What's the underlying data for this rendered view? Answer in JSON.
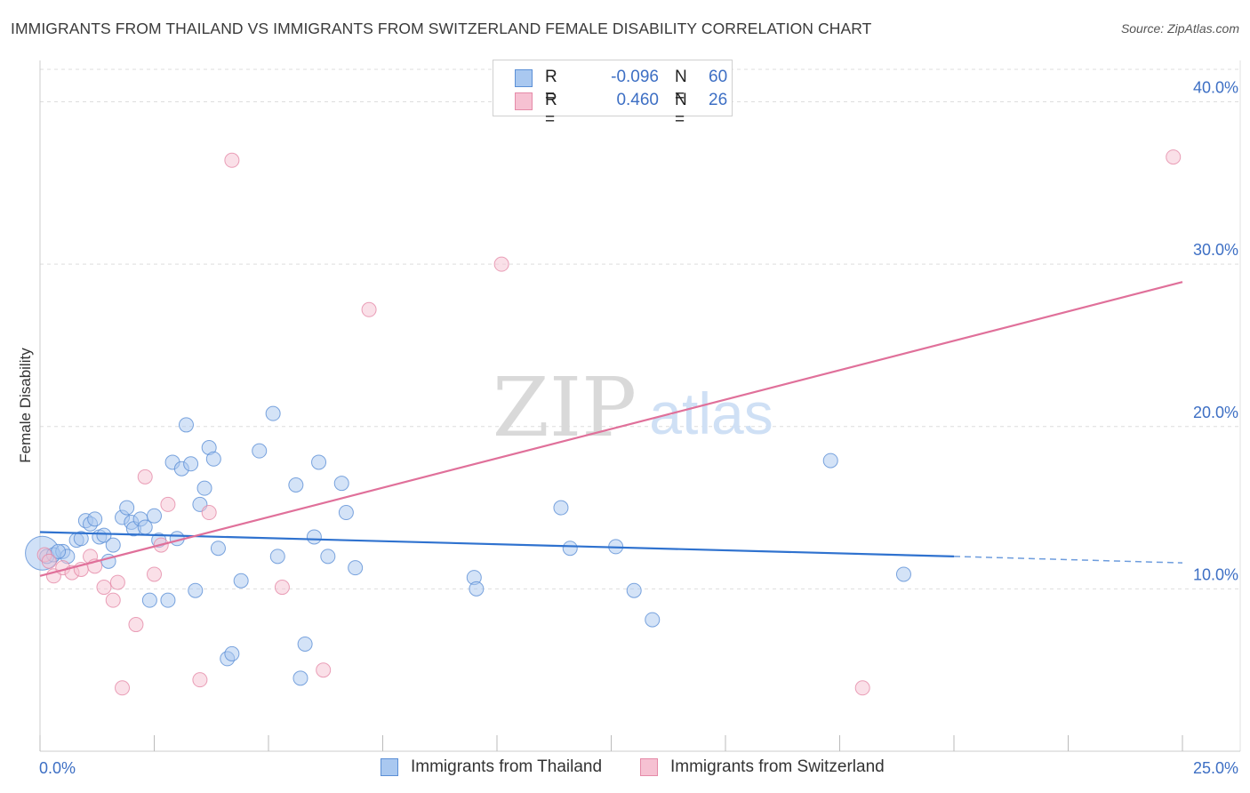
{
  "title": "IMMIGRANTS FROM THAILAND VS IMMIGRANTS FROM SWITZERLAND FEMALE DISABILITY CORRELATION CHART",
  "source": "Source: ZipAtlas.com",
  "watermark": {
    "part1": "ZIP",
    "part2": "atlas"
  },
  "colors": {
    "thailand_fill": "#a9c8f0",
    "thailand_stroke": "#5b8fd6",
    "thailand_line": "#2f72cf",
    "switzerland_fill": "#f6c1d2",
    "switzerland_stroke": "#e58aa8",
    "switzerland_line": "#e0709a",
    "axis_label": "#3d6fc4",
    "grid": "#dddddd"
  },
  "legend": {
    "thailand": {
      "r_label": "R =",
      "r_value": "-0.096",
      "n_label": "N =",
      "n_value": "60"
    },
    "switzerland": {
      "r_label": "R =",
      "r_value": "0.460",
      "n_label": "N =",
      "n_value": "26"
    }
  },
  "chart_data": {
    "type": "scatter",
    "title": "IMMIGRANTS FROM THAILAND VS IMMIGRANTS FROM SWITZERLAND FEMALE DISABILITY CORRELATION CHART",
    "xlabel": "",
    "ylabel": "Female Disability",
    "xlim": [
      0,
      25
    ],
    "ylim": [
      0,
      42
    ],
    "x_tick_labels": [
      "0.0%",
      "25.0%"
    ],
    "y_ticks": [
      10,
      20,
      30,
      40
    ],
    "y_tick_labels": [
      "10.0%",
      "20.0%",
      "30.0%",
      "40.0%"
    ],
    "grid": true,
    "series": [
      {
        "name": "Immigrants from Thailand",
        "color": "#a9c8f0",
        "points": [
          {
            "x": 0.05,
            "y": 12.2,
            "big": true
          },
          {
            "x": 0.15,
            "y": 12.0
          },
          {
            "x": 0.3,
            "y": 12.1
          },
          {
            "x": 0.5,
            "y": 12.3
          },
          {
            "x": 0.6,
            "y": 12.0
          },
          {
            "x": 0.8,
            "y": 13.0
          },
          {
            "x": 0.9,
            "y": 13.1
          },
          {
            "x": 1.0,
            "y": 14.2
          },
          {
            "x": 1.1,
            "y": 14.0
          },
          {
            "x": 1.2,
            "y": 14.3
          },
          {
            "x": 1.3,
            "y": 13.2
          },
          {
            "x": 1.4,
            "y": 13.3
          },
          {
            "x": 1.5,
            "y": 11.7
          },
          {
            "x": 1.6,
            "y": 12.7
          },
          {
            "x": 1.8,
            "y": 14.4
          },
          {
            "x": 1.9,
            "y": 15.0
          },
          {
            "x": 2.0,
            "y": 14.1
          },
          {
            "x": 2.05,
            "y": 13.7
          },
          {
            "x": 2.2,
            "y": 14.3
          },
          {
            "x": 2.3,
            "y": 13.8
          },
          {
            "x": 2.4,
            "y": 9.3
          },
          {
            "x": 2.5,
            "y": 14.5
          },
          {
            "x": 2.6,
            "y": 13.0
          },
          {
            "x": 2.8,
            "y": 9.3
          },
          {
            "x": 2.9,
            "y": 17.8
          },
          {
            "x": 3.0,
            "y": 13.1
          },
          {
            "x": 3.1,
            "y": 17.4
          },
          {
            "x": 3.2,
            "y": 20.1
          },
          {
            "x": 3.3,
            "y": 17.7
          },
          {
            "x": 3.4,
            "y": 9.9
          },
          {
            "x": 3.5,
            "y": 15.2
          },
          {
            "x": 3.6,
            "y": 16.2
          },
          {
            "x": 3.7,
            "y": 18.7
          },
          {
            "x": 3.8,
            "y": 18.0
          },
          {
            "x": 3.9,
            "y": 12.5
          },
          {
            "x": 4.1,
            "y": 5.7
          },
          {
            "x": 4.2,
            "y": 6.0
          },
          {
            "x": 4.4,
            "y": 10.5
          },
          {
            "x": 4.8,
            "y": 18.5
          },
          {
            "x": 5.1,
            "y": 20.8
          },
          {
            "x": 5.2,
            "y": 12.0
          },
          {
            "x": 5.6,
            "y": 16.4
          },
          {
            "x": 5.7,
            "y": 4.5
          },
          {
            "x": 5.8,
            "y": 6.6
          },
          {
            "x": 6.0,
            "y": 13.2
          },
          {
            "x": 6.1,
            "y": 17.8
          },
          {
            "x": 6.3,
            "y": 12.0
          },
          {
            "x": 6.6,
            "y": 16.5
          },
          {
            "x": 6.7,
            "y": 14.7
          },
          {
            "x": 6.9,
            "y": 11.3
          },
          {
            "x": 9.5,
            "y": 10.7
          },
          {
            "x": 9.55,
            "y": 10.0
          },
          {
            "x": 11.4,
            "y": 15.0
          },
          {
            "x": 11.6,
            "y": 12.5
          },
          {
            "x": 12.6,
            "y": 12.6
          },
          {
            "x": 13.0,
            "y": 9.9
          },
          {
            "x": 13.4,
            "y": 8.1
          },
          {
            "x": 17.3,
            "y": 17.9
          },
          {
            "x": 18.9,
            "y": 10.9
          },
          {
            "x": 0.4,
            "y": 12.3
          }
        ]
      },
      {
        "name": "Immigrants from Switzerland",
        "color": "#f6c1d2",
        "points": [
          {
            "x": 0.1,
            "y": 12.1
          },
          {
            "x": 0.2,
            "y": 11.7
          },
          {
            "x": 0.3,
            "y": 10.8
          },
          {
            "x": 0.5,
            "y": 11.3
          },
          {
            "x": 0.7,
            "y": 11.0
          },
          {
            "x": 0.9,
            "y": 11.2
          },
          {
            "x": 1.1,
            "y": 12.0
          },
          {
            "x": 1.2,
            "y": 11.4
          },
          {
            "x": 1.4,
            "y": 10.1
          },
          {
            "x": 1.6,
            "y": 9.3
          },
          {
            "x": 1.7,
            "y": 10.4
          },
          {
            "x": 1.8,
            "y": 3.9
          },
          {
            "x": 2.1,
            "y": 7.8
          },
          {
            "x": 2.3,
            "y": 16.9
          },
          {
            "x": 2.5,
            "y": 10.9
          },
          {
            "x": 2.65,
            "y": 12.7
          },
          {
            "x": 2.8,
            "y": 15.2
          },
          {
            "x": 3.5,
            "y": 4.4
          },
          {
            "x": 3.7,
            "y": 14.7
          },
          {
            "x": 4.2,
            "y": 36.4
          },
          {
            "x": 5.3,
            "y": 10.1
          },
          {
            "x": 6.2,
            "y": 5.0
          },
          {
            "x": 7.2,
            "y": 27.2
          },
          {
            "x": 10.1,
            "y": 30.0
          },
          {
            "x": 18.0,
            "y": 3.9
          },
          {
            "x": 24.8,
            "y": 36.6
          }
        ]
      }
    ],
    "trendlines": [
      {
        "series": "Immigrants from Thailand",
        "x0": 0,
        "y0": 13.5,
        "x1": 20,
        "y1": 12.0,
        "dashed_to_x": 25,
        "dashed_to_y": 11.6
      },
      {
        "series": "Immigrants from Switzerland",
        "x0": 0,
        "y0": 10.8,
        "x1": 25,
        "y1": 28.9
      }
    ]
  }
}
